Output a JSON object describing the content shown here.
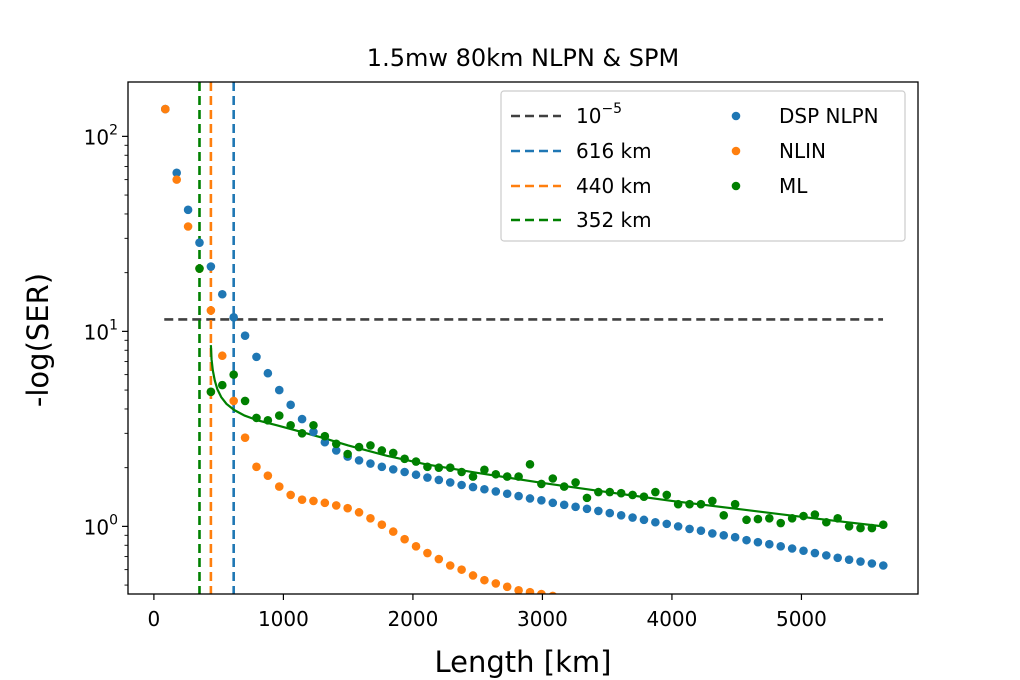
{
  "chart_data": {
    "type": "scatter",
    "title": "1.5mw 80km NLPN & SPM",
    "xlabel": "Length [km]",
    "ylabel": "-log(SER)",
    "xlim": [
      -200,
      5900
    ],
    "ylim": [
      0.45,
      190
    ],
    "yscale": "log",
    "x_ticks": [
      0,
      1000,
      2000,
      3000,
      4000,
      5000
    ],
    "x_tick_labels": [
      "0",
      "1000",
      "2000",
      "3000",
      "4000",
      "5000"
    ],
    "y_ticks": [
      1,
      10,
      100
    ],
    "y_tick_labels": [
      {
        "base": "10",
        "exp": "0"
      },
      {
        "base": "10",
        "exp": "1"
      },
      {
        "base": "10",
        "exp": "2"
      }
    ],
    "grid": false,
    "legend_position": "top-right",
    "legend_columns": 2,
    "threshold": {
      "label_base": "10",
      "label_exp": "−5",
      "y": 11.51,
      "x_range": [
        80,
        5630
      ],
      "color": "#404040"
    },
    "vlines": [
      {
        "name": "616 km",
        "x": 616,
        "color": "#1f77b4"
      },
      {
        "name": "440 km",
        "x": 440,
        "color": "#ff7f0e"
      },
      {
        "name": "352 km",
        "x": 352,
        "color": "#008000"
      }
    ],
    "fit_curve": {
      "series": "ML",
      "color": "#008000",
      "x": [
        440,
        445,
        455,
        470,
        490,
        520,
        560,
        620,
        700,
        800,
        950,
        1100,
        1300,
        1500,
        1800,
        2100,
        2500,
        3000,
        3500,
        4000,
        4500,
        5000,
        5300,
        5630
      ],
      "y": [
        8.5,
        7.2,
        6.3,
        5.6,
        5.05,
        4.6,
        4.25,
        3.95,
        3.7,
        3.5,
        3.3,
        3.1,
        2.85,
        2.6,
        2.3,
        2.08,
        1.88,
        1.67,
        1.5,
        1.35,
        1.23,
        1.12,
        1.06,
        1.0
      ]
    },
    "series": [
      {
        "name": "DSP NLPN",
        "color": "#1f77b4",
        "x": [
          88,
          176,
          264,
          352,
          440,
          528,
          616,
          704,
          792,
          880,
          968,
          1056,
          1144,
          1232,
          1320,
          1408,
          1496,
          1584,
          1672,
          1760,
          1848,
          1936,
          2024,
          2112,
          2200,
          2288,
          2376,
          2464,
          2552,
          2640,
          2728,
          2816,
          2904,
          2992,
          3080,
          3168,
          3256,
          3344,
          3432,
          3520,
          3608,
          3696,
          3784,
          3872,
          3960,
          4048,
          4136,
          4224,
          4312,
          4400,
          4488,
          4576,
          4664,
          4752,
          4840,
          4928,
          5016,
          5104,
          5192,
          5280,
          5368,
          5456,
          5544,
          5632
        ],
        "y": [
          138,
          65,
          42,
          28.5,
          21.5,
          15.5,
          11.8,
          9.5,
          7.4,
          6.1,
          5.0,
          4.2,
          3.55,
          3.05,
          2.7,
          2.45,
          2.28,
          2.18,
          2.1,
          2.02,
          1.96,
          1.9,
          1.84,
          1.78,
          1.73,
          1.68,
          1.63,
          1.59,
          1.55,
          1.51,
          1.47,
          1.43,
          1.39,
          1.36,
          1.32,
          1.29,
          1.26,
          1.23,
          1.2,
          1.17,
          1.14,
          1.11,
          1.08,
          1.05,
          1.03,
          1.0,
          0.97,
          0.95,
          0.92,
          0.9,
          0.88,
          0.85,
          0.83,
          0.81,
          0.79,
          0.77,
          0.75,
          0.73,
          0.71,
          0.69,
          0.675,
          0.66,
          0.645,
          0.63
        ]
      },
      {
        "name": "NLIN",
        "color": "#ff7f0e",
        "x": [
          88,
          176,
          264,
          352,
          440,
          440,
          528,
          616,
          704,
          792,
          880,
          968,
          1056,
          1144,
          1232,
          1320,
          1408,
          1496,
          1584,
          1672,
          1760,
          1848,
          1936,
          2024,
          2112,
          2200,
          2288,
          2376,
          2464,
          2552,
          2640,
          2728,
          2816,
          2904,
          2992,
          3080
        ],
        "y": [
          138,
          60,
          34.5,
          21,
          12.8,
          4.9,
          7.5,
          4.4,
          2.85,
          2.02,
          1.82,
          1.6,
          1.45,
          1.37,
          1.35,
          1.32,
          1.28,
          1.24,
          1.18,
          1.1,
          1.02,
          0.94,
          0.86,
          0.79,
          0.73,
          0.68,
          0.63,
          0.6,
          0.56,
          0.53,
          0.51,
          0.49,
          0.47,
          0.46,
          0.45,
          0.44
        ]
      },
      {
        "name": "ML",
        "color": "#008000",
        "x": [
          352,
          440,
          528,
          616,
          704,
          792,
          880,
          968,
          1056,
          1144,
          1232,
          1320,
          1408,
          1496,
          1584,
          1672,
          1760,
          1848,
          1936,
          2024,
          2112,
          2200,
          2288,
          2376,
          2464,
          2552,
          2640,
          2728,
          2816,
          2904,
          2992,
          3080,
          3168,
          3256,
          3344,
          3432,
          3520,
          3608,
          3696,
          3784,
          3872,
          3960,
          4048,
          4136,
          4224,
          4312,
          4400,
          4488,
          4576,
          4664,
          4752,
          4840,
          4928,
          5016,
          5104,
          5192,
          5280,
          5368,
          5456,
          5544,
          5632
        ],
        "y": [
          21,
          4.9,
          5.3,
          6.0,
          4.4,
          3.6,
          3.5,
          3.7,
          3.3,
          3.0,
          3.3,
          2.9,
          2.65,
          2.35,
          2.55,
          2.6,
          2.45,
          2.38,
          2.22,
          2.15,
          2.02,
          2.0,
          2.0,
          1.9,
          1.8,
          1.95,
          1.85,
          1.8,
          1.8,
          2.08,
          1.65,
          1.76,
          1.6,
          1.68,
          1.4,
          1.5,
          1.5,
          1.48,
          1.45,
          1.42,
          1.5,
          1.45,
          1.3,
          1.3,
          1.3,
          1.35,
          1.14,
          1.3,
          1.08,
          1.09,
          1.1,
          1.04,
          1.1,
          1.13,
          1.15,
          1.05,
          1.1,
          1.0,
          0.98,
          0.98,
          1.02
        ]
      }
    ]
  }
}
